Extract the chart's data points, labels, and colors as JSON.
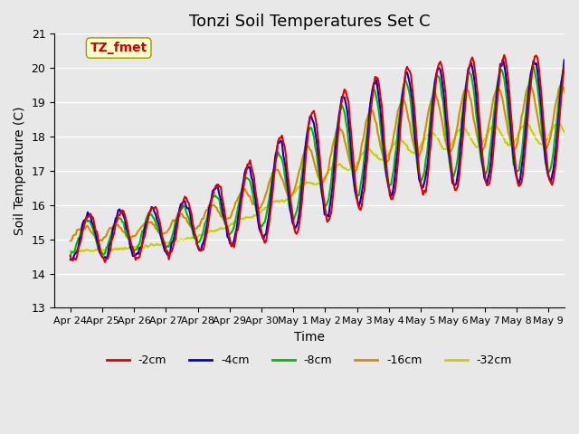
{
  "title": "Tonzi Soil Temperatures Set C",
  "xlabel": "Time",
  "ylabel": "Soil Temperature (C)",
  "ylim": [
    13.0,
    21.0
  ],
  "yticks": [
    13.0,
    14.0,
    15.0,
    16.0,
    17.0,
    18.0,
    19.0,
    20.0,
    21.0
  ],
  "xtick_labels": [
    "Apr 24",
    "Apr 25",
    "Apr 26",
    "Apr 27",
    "Apr 28",
    "Apr 29",
    "Apr 30",
    "May 1",
    "May 2",
    "May 3",
    "May 4",
    "May 5",
    "May 6",
    "May 7",
    "May 8",
    "May 9"
  ],
  "series_colors": [
    "#dd0000",
    "#0000cc",
    "#00bb00",
    "#dd8800",
    "#cccc00"
  ],
  "series_labels": [
    "-2cm",
    "-4cm",
    "-8cm",
    "-16cm",
    "-32cm"
  ],
  "line_width": 1.5,
  "annotation_text": "TZ_fmet",
  "annotation_color": "#cc0000",
  "annotation_bg": "#ffffcc",
  "background_color": "#e8e8e8",
  "grid_color": "#ffffff",
  "title_fontsize": 13,
  "label_fontsize": 10
}
